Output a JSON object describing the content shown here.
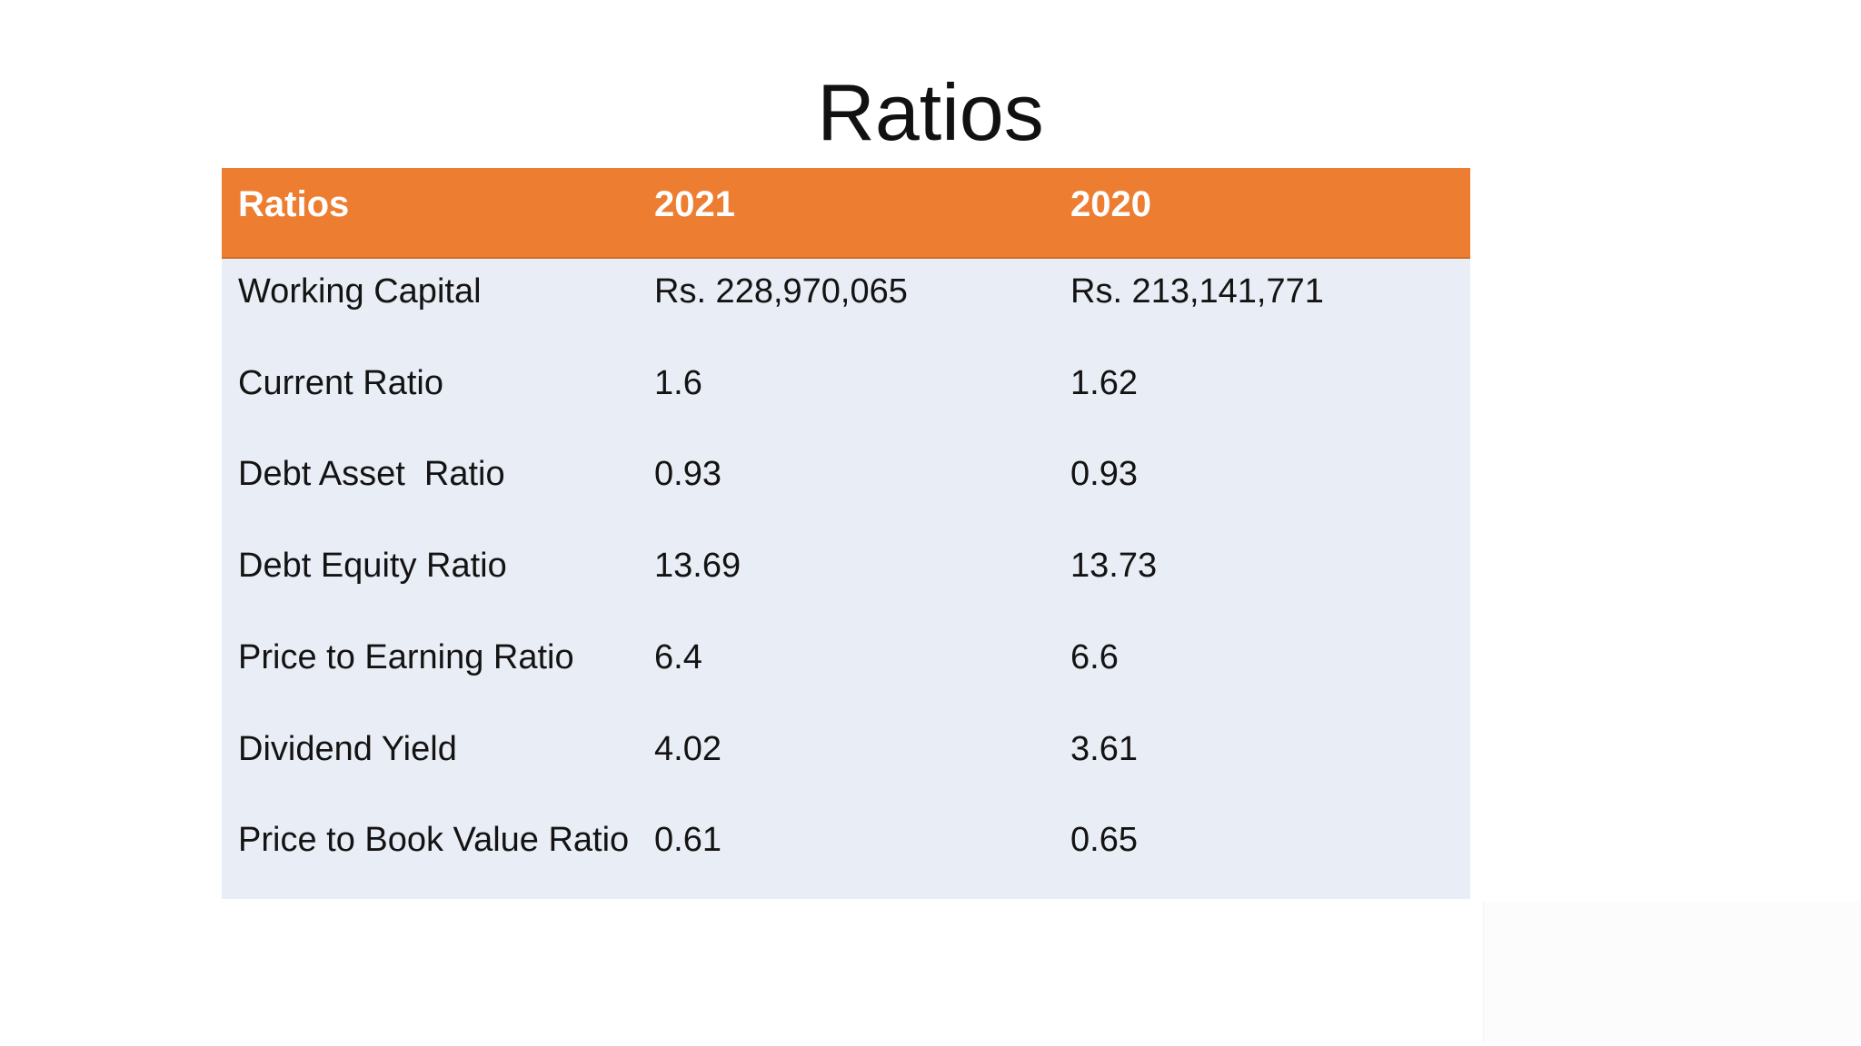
{
  "slide": {
    "title": "Ratios",
    "colors": {
      "header_bg": "#ED7D31",
      "header_border": "#CF6E29",
      "body_bg": "#E9EDF5",
      "header_text": "#FFFFFF",
      "body_text": "#131313",
      "title_text": "#111111",
      "page_bg": "#FFFFFF"
    },
    "table": {
      "columns": [
        "Ratios",
        "2021",
        "2020"
      ],
      "rows": [
        {
          "label": "Working Capital",
          "y2021": "Rs. 228,970,065",
          "y2020": "Rs. 213,141,771"
        },
        {
          "label": "Current Ratio",
          "y2021": "1.6",
          "y2020": "1.62"
        },
        {
          "label": "Debt Asset  Ratio",
          "y2021": "0.93",
          "y2020": "0.93"
        },
        {
          "label": "Debt Equity Ratio",
          "y2021": "13.69",
          "y2020": "13.73"
        },
        {
          "label": "Price to Earning Ratio",
          "y2021": "6.4",
          "y2020": "6.6"
        },
        {
          "label": "Dividend Yield",
          "y2021": "4.02",
          "y2020": "3.61"
        },
        {
          "label": "Price to Book Value Ratio",
          "y2021": "0.61",
          "y2020": "0.65"
        }
      ]
    }
  }
}
